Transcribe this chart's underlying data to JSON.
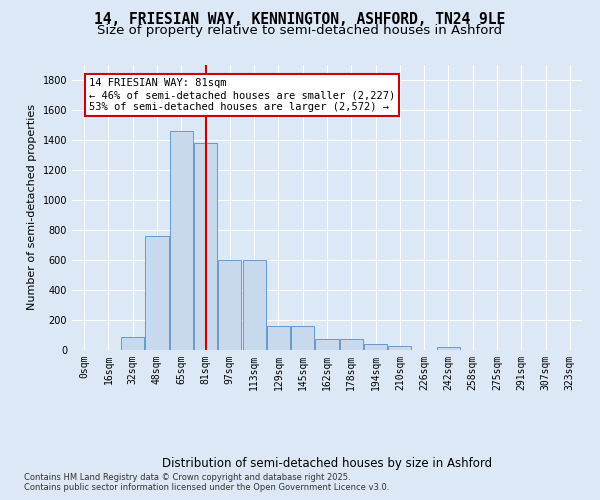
{
  "title_line1": "14, FRIESIAN WAY, KENNINGTON, ASHFORD, TN24 9LE",
  "title_line2": "Size of property relative to semi-detached houses in Ashford",
  "xlabel": "Distribution of semi-detached houses by size in Ashford",
  "ylabel": "Number of semi-detached properties",
  "categories": [
    "0sqm",
    "16sqm",
    "32sqm",
    "48sqm",
    "65sqm",
    "81sqm",
    "97sqm",
    "113sqm",
    "129sqm",
    "145sqm",
    "162sqm",
    "178sqm",
    "194sqm",
    "210sqm",
    "226sqm",
    "242sqm",
    "258sqm",
    "275sqm",
    "291sqm",
    "307sqm",
    "323sqm"
  ],
  "bar_values": [
    0,
    0,
    90,
    760,
    1460,
    1380,
    600,
    600,
    160,
    160,
    75,
    75,
    40,
    25,
    0,
    20,
    0,
    0,
    0,
    0,
    0
  ],
  "bar_color": "#c8d9ee",
  "bar_edge_color": "#6699cc",
  "highlight_index": 5,
  "highlight_line_color": "#cc0000",
  "annotation_text": "14 FRIESIAN WAY: 81sqm\n← 46% of semi-detached houses are smaller (2,227)\n53% of semi-detached houses are larger (2,572) →",
  "annotation_box_color": "#ffffff",
  "annotation_box_edge": "#cc0000",
  "ylim": [
    0,
    1900
  ],
  "yticks": [
    0,
    200,
    400,
    600,
    800,
    1000,
    1200,
    1400,
    1600,
    1800
  ],
  "background_color": "#dce8f5",
  "plot_background": "#dce8f5",
  "grid_color": "#ffffff",
  "footer": "Contains HM Land Registry data © Crown copyright and database right 2025.\nContains public sector information licensed under the Open Government Licence v3.0.",
  "title_fontsize": 10.5,
  "subtitle_fontsize": 9.5,
  "tick_fontsize": 7,
  "ylabel_fontsize": 8,
  "xlabel_fontsize": 8.5,
  "annotation_fontsize": 7.5,
  "footer_fontsize": 6
}
